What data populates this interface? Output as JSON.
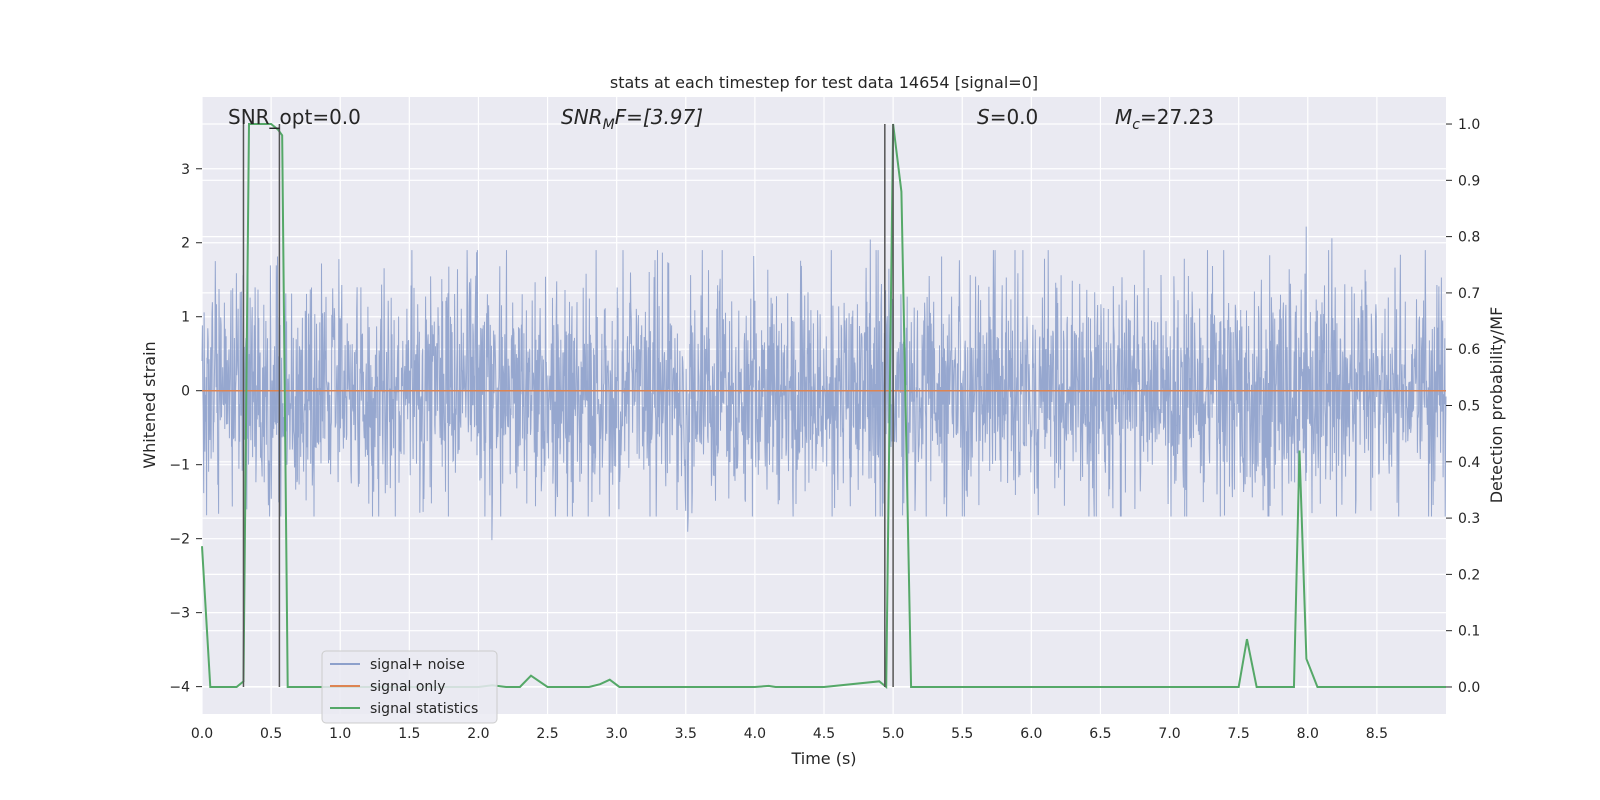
{
  "chart_data": {
    "type": "line",
    "title": "stats at each timestep for test data 14654 [signal=0]",
    "xlabel": "Time (s)",
    "ylabel": "Whitened strain",
    "y2label": "Detection probability/MF",
    "xlim": [
      0.0,
      9.0
    ],
    "ylim": [
      -4.37,
      3.97
    ],
    "y2lim": [
      -0.048,
      1.048
    ],
    "xticks": [
      0.0,
      0.5,
      1.0,
      1.5,
      2.0,
      2.5,
      3.0,
      3.5,
      4.0,
      4.5,
      5.0,
      5.5,
      6.0,
      6.5,
      7.0,
      7.5,
      8.0,
      8.5
    ],
    "xtick_labels": [
      "0.0",
      "0.5",
      "1.0",
      "1.5",
      "2.0",
      "2.5",
      "3.0",
      "3.5",
      "4.0",
      "4.5",
      "5.0",
      "5.5",
      "6.0",
      "6.5",
      "7.0",
      "7.5",
      "8.0",
      "8.5"
    ],
    "yticks": [
      -4,
      -3,
      -2,
      -1,
      0,
      1,
      2,
      3
    ],
    "ytick_labels": [
      "−4",
      "−3",
      "−2",
      "−1",
      "0",
      "1",
      "2",
      "3"
    ],
    "y2ticks": [
      0.0,
      0.1,
      0.2,
      0.3,
      0.4,
      0.5,
      0.6,
      0.7,
      0.8,
      0.9,
      1.0
    ],
    "y2tick_labels": [
      "0.0",
      "0.1",
      "0.2",
      "0.3",
      "0.4",
      "0.5",
      "0.6",
      "0.7",
      "0.8",
      "0.9",
      "1.0"
    ],
    "grid": true,
    "legend": "lower-left",
    "annotations": {
      "snr_opt": "SNR_opt=0.0",
      "snr_mf_main": "SNR",
      "snr_mf_sub": "M",
      "snr_mf_rest": "F=[3.97]",
      "s_main": "S",
      "s_rest": "=0.0",
      "mc_main": "M",
      "mc_sub": "c",
      "mc_rest": "=27.23"
    },
    "series": [
      {
        "name": "signal+ noise",
        "color": "#8da0cb",
        "axis": "left",
        "envelope": {
          "typical_range": [
            -1.7,
            1.9
          ],
          "spike_max": 3.6,
          "spike_min": -3.6
        }
      },
      {
        "name": "signal only",
        "color": "#dd8452",
        "axis": "left",
        "x": [
          0.0,
          9.0
        ],
        "y": [
          0.0,
          0.0
        ]
      },
      {
        "name": "signal statistics",
        "color": "#55a868",
        "axis": "right",
        "x": [
          0.0,
          0.06,
          0.1,
          0.2,
          0.25,
          0.3,
          0.34,
          0.38,
          0.45,
          0.5,
          0.55,
          0.58,
          0.62,
          0.7,
          0.8,
          1.0,
          1.5,
          2.0,
          2.1,
          2.2,
          2.3,
          2.38,
          2.5,
          2.6,
          2.8,
          2.88,
          2.95,
          3.02,
          3.2,
          3.5,
          4.0,
          4.1,
          4.15,
          4.5,
          4.9,
          4.95,
          5.0,
          5.06,
          5.13,
          5.2,
          6.0,
          7.0,
          7.2,
          7.5,
          7.56,
          7.63,
          7.9,
          7.94,
          7.99,
          8.07,
          8.5,
          9.0
        ],
        "y": [
          0.25,
          0.0,
          0.0,
          0.0,
          0.0,
          0.01,
          1.0,
          1.0,
          1.0,
          1.0,
          0.99,
          0.98,
          0.0,
          0.0,
          0.0,
          0.0,
          0.0,
          0.0,
          0.003,
          0.0,
          0.0,
          0.02,
          0.0,
          0.0,
          0.0,
          0.005,
          0.013,
          0.0,
          0.0,
          0.0,
          0.0,
          0.002,
          0.0,
          0.0,
          0.01,
          0.0,
          1.0,
          0.88,
          0.0,
          0.0,
          0.0,
          0.0,
          0.0,
          0.0,
          0.085,
          0.0,
          0.0,
          0.42,
          0.05,
          0.0,
          0.0,
          0.0
        ]
      }
    ],
    "vlines": [
      0.3,
      0.56,
      4.94,
      5.0
    ]
  }
}
